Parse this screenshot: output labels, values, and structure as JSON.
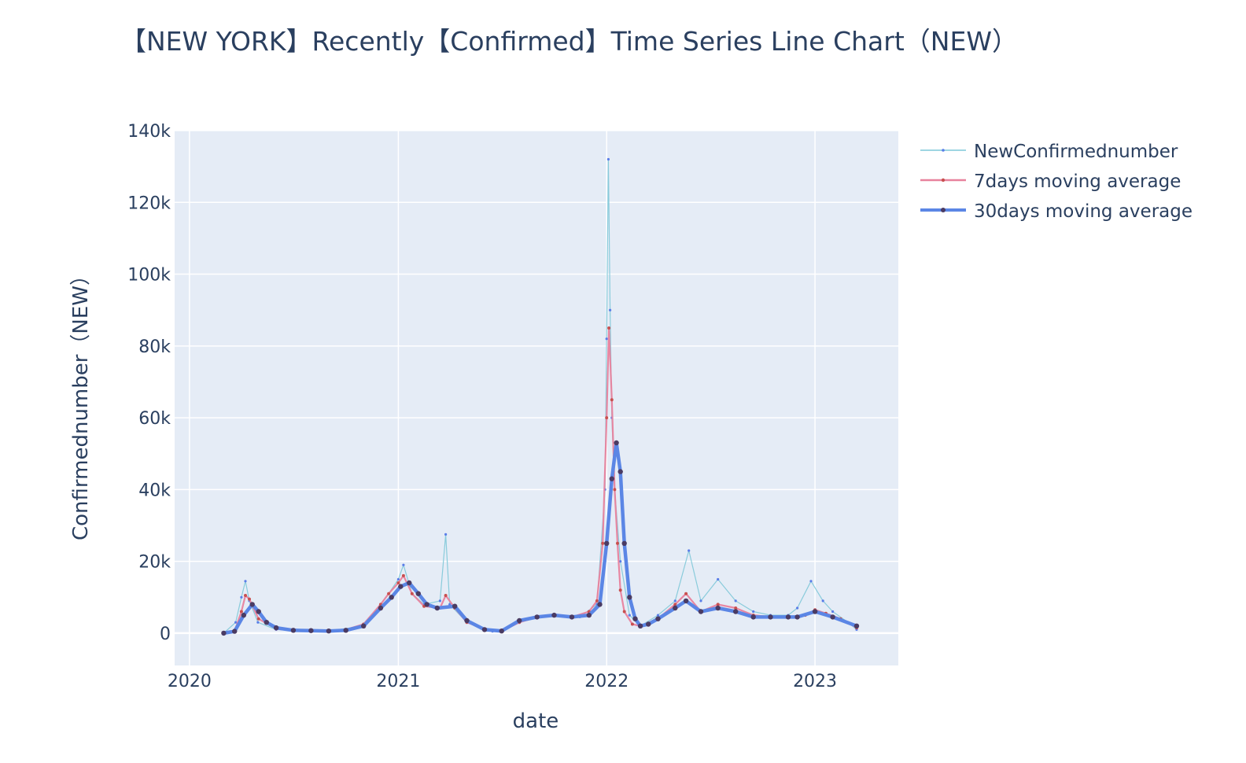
{
  "chart_data": {
    "type": "line",
    "title": "【NEW YORK】Recently【Confirmed】Time Series Line Chart（NEW）",
    "xlabel": "date",
    "ylabel": "Confirmednumber（NEW）",
    "x_ticks": [
      "2020",
      "2021",
      "2022",
      "2023"
    ],
    "y_ticks": [
      "0",
      "20k",
      "40k",
      "60k",
      "80k",
      "100k",
      "120k",
      "140k"
    ],
    "xlim": [
      "2019-12-06",
      "2023-05-27"
    ],
    "ylim": [
      -9000,
      140000
    ],
    "grid": true,
    "legend_position": "right",
    "colors": {
      "NewConfirmednumber": "#7ec8d8",
      "NewConfirmednumber_marker": "#5a7de8",
      "7days moving average": "#e8829d",
      "7days moving average_marker": "#c8504f",
      "30days moving average": "#5b86e5",
      "30days moving average_marker": "#4a3b63",
      "plot_bg": "#e5ecf6",
      "grid": "#ffffff"
    },
    "series": [
      {
        "name": "NewConfirmednumber",
        "x": [
          "2020-03-01",
          "2020-03-22",
          "2020-04-01",
          "2020-04-08",
          "2020-04-15",
          "2020-04-30",
          "2020-06-01",
          "2020-09-01",
          "2020-11-01",
          "2020-12-01",
          "2020-12-15",
          "2021-01-01",
          "2021-01-10",
          "2021-01-25",
          "2021-02-15",
          "2021-03-15",
          "2021-03-25",
          "2021-04-01",
          "2021-05-01",
          "2021-06-15",
          "2021-07-01",
          "2021-08-15",
          "2021-10-01",
          "2021-11-15",
          "2021-12-15",
          "2021-12-29",
          "2022-01-01",
          "2022-01-04",
          "2022-01-07",
          "2022-01-10",
          "2022-01-15",
          "2022-01-25",
          "2022-02-10",
          "2022-03-01",
          "2022-04-01",
          "2022-05-01",
          "2022-05-25",
          "2022-06-15",
          "2022-07-15",
          "2022-08-15",
          "2022-09-15",
          "2022-10-15",
          "2022-11-15",
          "2022-12-01",
          "2022-12-25",
          "2023-01-15",
          "2023-02-01",
          "2023-02-28",
          "2023-03-15"
        ],
        "values": [
          0,
          3000,
          10000,
          14500,
          9000,
          3000,
          1000,
          600,
          2000,
          8000,
          11000,
          15000,
          19000,
          11000,
          8000,
          9000,
          27500,
          8000,
          3000,
          500,
          700,
          4000,
          5000,
          4500,
          8000,
          40000,
          82000,
          132000,
          90000,
          60000,
          40000,
          20000,
          5000,
          2000,
          5000,
          9000,
          23000,
          9000,
          15000,
          9000,
          6000,
          5000,
          5000,
          7000,
          14500,
          9000,
          6000,
          3000,
          1000
        ]
      },
      {
        "name": "7days moving average",
        "x": [
          "2020-03-01",
          "2020-03-20",
          "2020-04-01",
          "2020-04-08",
          "2020-04-15",
          "2020-05-01",
          "2020-06-01",
          "2020-07-01",
          "2020-09-01",
          "2020-10-01",
          "2020-11-01",
          "2020-12-01",
          "2020-12-15",
          "2021-01-01",
          "2021-01-10",
          "2021-01-25",
          "2021-02-15",
          "2021-03-15",
          "2021-03-25",
          "2021-04-10",
          "2021-05-01",
          "2021-06-01",
          "2021-07-01",
          "2021-08-01",
          "2021-09-01",
          "2021-10-01",
          "2021-11-01",
          "2021-12-01",
          "2021-12-15",
          "2021-12-25",
          "2022-01-01",
          "2022-01-05",
          "2022-01-10",
          "2022-01-15",
          "2022-01-20",
          "2022-01-25",
          "2022-02-01",
          "2022-02-15",
          "2022-03-01",
          "2022-04-01",
          "2022-05-01",
          "2022-05-20",
          "2022-06-15",
          "2022-07-15",
          "2022-08-15",
          "2022-09-15",
          "2022-10-15",
          "2022-11-15",
          "2022-12-15",
          "2023-01-01",
          "2023-01-20",
          "2023-02-15",
          "2023-03-15"
        ],
        "values": [
          0,
          500,
          6000,
          10500,
          9500,
          4000,
          1200,
          700,
          700,
          1000,
          2500,
          8000,
          11000,
          14000,
          16000,
          11000,
          7500,
          7000,
          10500,
          7000,
          3000,
          1200,
          600,
          3000,
          4500,
          5000,
          4500,
          6000,
          9000,
          25000,
          60000,
          85000,
          65000,
          40000,
          25000,
          12000,
          6000,
          2500,
          2000,
          4000,
          8000,
          11000,
          6000,
          8000,
          7000,
          5000,
          4500,
          4500,
          5000,
          6500,
          5500,
          4000,
          1500
        ]
      },
      {
        "name": "30days moving average",
        "x": [
          "2020-03-01",
          "2020-03-20",
          "2020-04-05",
          "2020-04-20",
          "2020-05-01",
          "2020-05-15",
          "2020-06-01",
          "2020-07-01",
          "2020-08-01",
          "2020-09-01",
          "2020-10-01",
          "2020-11-01",
          "2020-12-01",
          "2020-12-20",
          "2021-01-05",
          "2021-01-20",
          "2021-02-05",
          "2021-02-20",
          "2021-03-10",
          "2021-04-10",
          "2021-05-01",
          "2021-06-01",
          "2021-07-01",
          "2021-08-01",
          "2021-09-01",
          "2021-10-01",
          "2021-11-01",
          "2021-12-01",
          "2021-12-20",
          "2022-01-01",
          "2022-01-10",
          "2022-01-18",
          "2022-01-25",
          "2022-02-01",
          "2022-02-10",
          "2022-02-20",
          "2022-03-01",
          "2022-03-15",
          "2022-04-01",
          "2022-05-01",
          "2022-05-20",
          "2022-06-15",
          "2022-07-15",
          "2022-08-15",
          "2022-09-15",
          "2022-10-15",
          "2022-11-15",
          "2022-12-01",
          "2023-01-01",
          "2023-02-01",
          "2023-03-15"
        ],
        "values": [
          0,
          500,
          5000,
          8000,
          6000,
          3000,
          1500,
          800,
          700,
          600,
          800,
          2000,
          7000,
          10000,
          13000,
          14000,
          11000,
          8000,
          7000,
          7500,
          3500,
          1000,
          600,
          3500,
          4500,
          5000,
          4500,
          5000,
          8000,
          25000,
          43000,
          53000,
          45000,
          25000,
          10000,
          4000,
          2000,
          2500,
          4000,
          7000,
          9000,
          6000,
          7000,
          6000,
          4500,
          4500,
          4500,
          4500,
          6000,
          4500,
          2000
        ]
      }
    ]
  }
}
